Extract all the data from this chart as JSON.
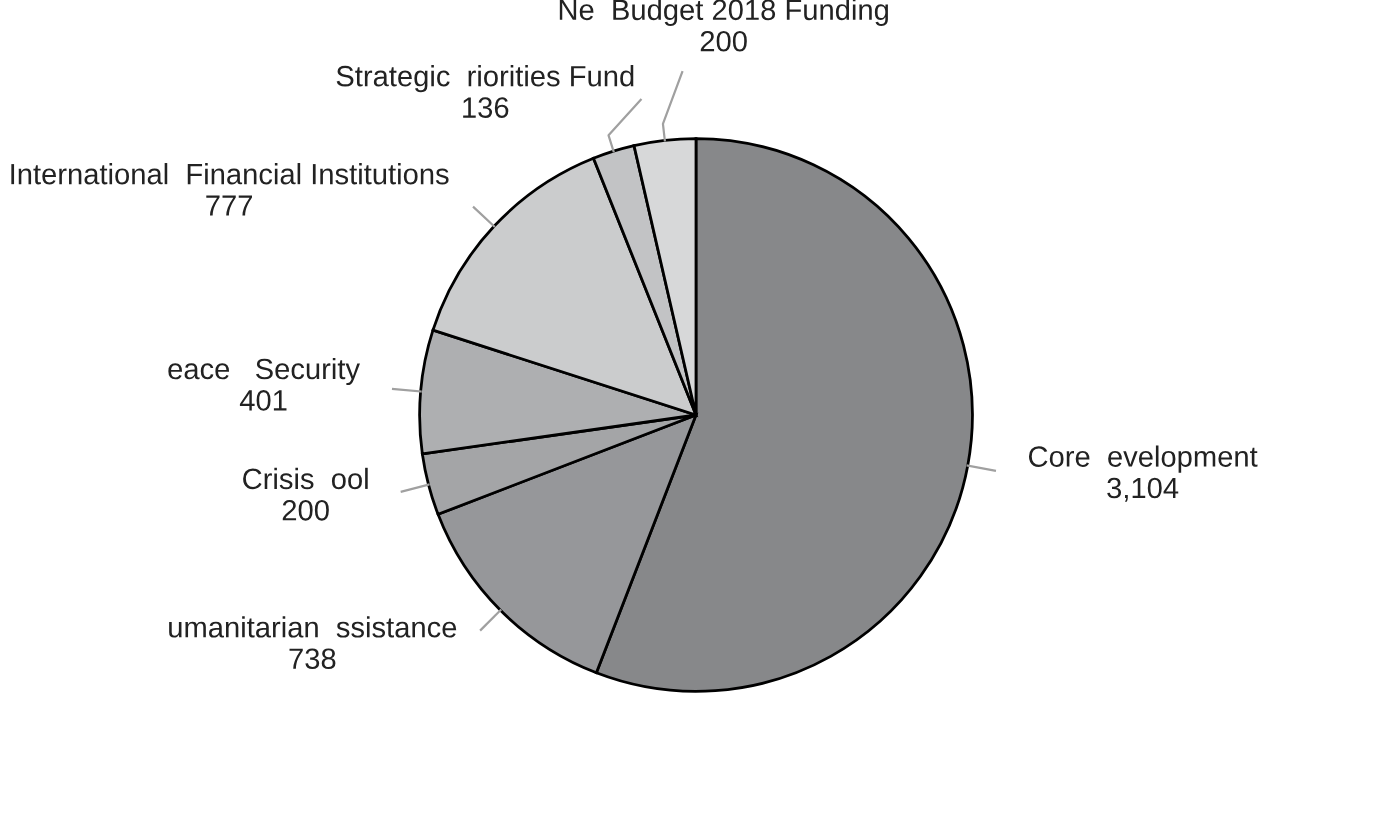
{
  "chart_data": {
    "type": "pie",
    "categories": [
      "Core  evelopment",
      "umanitarian  ssistance",
      "Crisis  ool",
      "eace   Security",
      "International  Financial Institutions",
      "Strategic  riorities Fund",
      "Ne  Budget 2018 Funding"
    ],
    "values": [
      3104,
      738,
      200,
      401,
      777,
      136,
      200
    ],
    "value_labels": [
      "3,104",
      "738",
      "200",
      "401",
      "777",
      "136",
      "200"
    ],
    "colors": [
      "#87888a",
      "#96979a",
      "#a4a5a7",
      "#aeafb1",
      "#cbcccd",
      "#c2c3c5",
      "#d7d8d9"
    ]
  }
}
